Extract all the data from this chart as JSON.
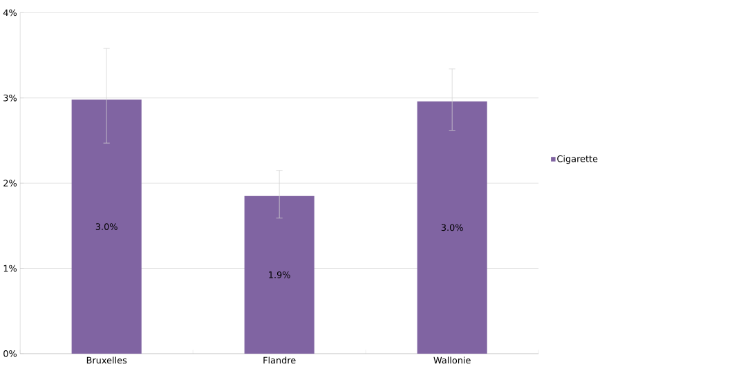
{
  "chart_data": {
    "type": "bar",
    "categories": [
      "Bruxelles",
      "Flandre",
      "Wallonie"
    ],
    "series": [
      {
        "name": "Cigarette",
        "color": "#8064a2",
        "values": [
          2.98,
          1.85,
          2.96
        ],
        "errors": [
          [
            2.47,
            3.58
          ],
          [
            1.59,
            2.15
          ],
          [
            2.62,
            3.34
          ]
        ],
        "value_labels": [
          "3.0%",
          "1.9%",
          "3.0%"
        ]
      }
    ],
    "ylim": [
      0,
      4
    ],
    "yticks": [
      {
        "value": 0,
        "label": "0%"
      },
      {
        "value": 1,
        "label": "1%"
      },
      {
        "value": 2,
        "label": "2%"
      },
      {
        "value": 3,
        "label": "3%"
      },
      {
        "value": 4,
        "label": "4%"
      }
    ],
    "grid": "y",
    "legend": "right"
  }
}
